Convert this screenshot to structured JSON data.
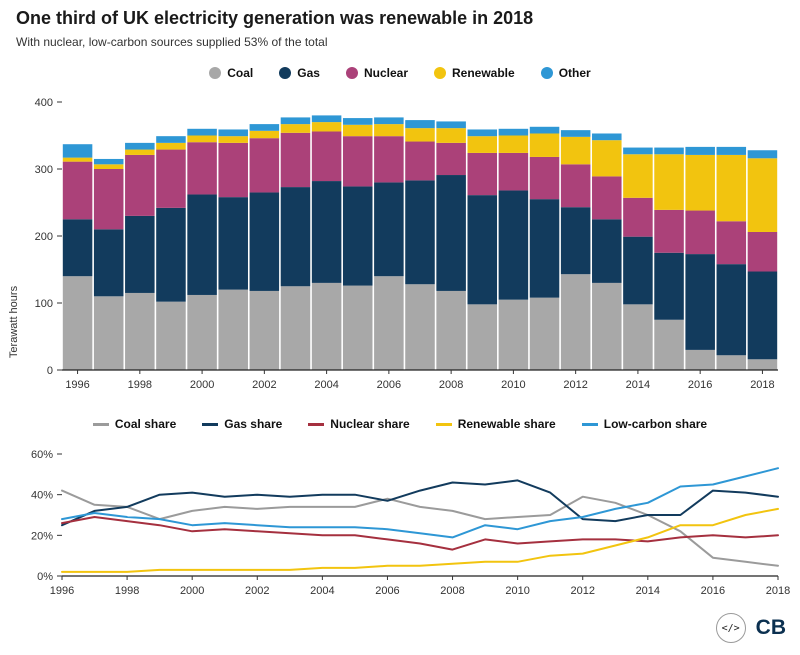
{
  "header": {
    "title": "One third of UK electricity generation was renewable in 2018",
    "subtitle": "With nuclear, low-carbon sources supplied 53% of the total"
  },
  "chart_data": [
    {
      "type": "bar",
      "stacked": true,
      "ylabel": "Terawatt hours",
      "ylim": [
        0,
        400
      ],
      "yticks": [
        0,
        100,
        200,
        300,
        400
      ],
      "x": [
        1996,
        1997,
        1998,
        1999,
        2000,
        2001,
        2002,
        2003,
        2004,
        2005,
        2006,
        2007,
        2008,
        2009,
        2010,
        2011,
        2012,
        2013,
        2014,
        2015,
        2016,
        2017,
        2018
      ],
      "xticks": [
        1996,
        1998,
        2000,
        2002,
        2004,
        2006,
        2008,
        2010,
        2012,
        2014,
        2016,
        2018
      ],
      "series": [
        {
          "name": "Coal",
          "color": "#a8a8a8",
          "values": [
            140,
            110,
            115,
            102,
            112,
            120,
            118,
            125,
            130,
            126,
            140,
            128,
            118,
            98,
            105,
            108,
            143,
            130,
            98,
            75,
            30,
            22,
            16
          ]
        },
        {
          "name": "Gas",
          "color": "#123b5d",
          "values": [
            85,
            100,
            115,
            140,
            150,
            138,
            147,
            148,
            152,
            148,
            140,
            155,
            173,
            163,
            163,
            147,
            100,
            95,
            101,
            100,
            143,
            136,
            131
          ]
        },
        {
          "name": "Nuclear",
          "color": "#ab4179",
          "values": [
            86,
            90,
            91,
            87,
            78,
            81,
            81,
            81,
            74,
            75,
            69,
            58,
            48,
            63,
            56,
            63,
            64,
            64,
            58,
            64,
            65,
            64,
            59
          ]
        },
        {
          "name": "Renewable",
          "color": "#f2c40f",
          "values": [
            6,
            7,
            8,
            10,
            10,
            10,
            11,
            13,
            14,
            17,
            18,
            20,
            22,
            25,
            26,
            35,
            41,
            54,
            65,
            83,
            83,
            99,
            110
          ]
        },
        {
          "name": "Other",
          "color": "#2e97d5",
          "values": [
            20,
            8,
            10,
            10,
            10,
            10,
            10,
            10,
            10,
            10,
            10,
            12,
            10,
            10,
            10,
            10,
            10,
            10,
            10,
            10,
            12,
            12,
            12
          ]
        }
      ]
    },
    {
      "type": "line",
      "ylim": [
        0,
        60
      ],
      "yticks": [
        0,
        20,
        40,
        60
      ],
      "ytick_suffix": "%",
      "x": [
        1996,
        1997,
        1998,
        1999,
        2000,
        2001,
        2002,
        2003,
        2004,
        2005,
        2006,
        2007,
        2008,
        2009,
        2010,
        2011,
        2012,
        2013,
        2014,
        2015,
        2016,
        2017,
        2018
      ],
      "xticks": [
        1996,
        1998,
        2000,
        2002,
        2004,
        2006,
        2008,
        2010,
        2012,
        2014,
        2016,
        2018
      ],
      "series": [
        {
          "name": "Coal share",
          "color": "#9b9b9b",
          "values": [
            42,
            35,
            34,
            28,
            32,
            34,
            33,
            34,
            34,
            34,
            38,
            34,
            32,
            28,
            29,
            30,
            39,
            36,
            30,
            22,
            9,
            7,
            5
          ]
        },
        {
          "name": "Gas share",
          "color": "#123b5d",
          "values": [
            25,
            32,
            34,
            40,
            41,
            39,
            40,
            39,
            40,
            40,
            37,
            42,
            46,
            45,
            47,
            41,
            28,
            27,
            30,
            30,
            42,
            41,
            39
          ]
        },
        {
          "name": "Nuclear share",
          "color": "#a5303f",
          "values": [
            26,
            29,
            27,
            25,
            22,
            23,
            22,
            21,
            20,
            20,
            18,
            16,
            13,
            18,
            16,
            17,
            18,
            18,
            17,
            19,
            20,
            19,
            20
          ]
        },
        {
          "name": "Renewable share",
          "color": "#f2c40f",
          "values": [
            2,
            2,
            2,
            3,
            3,
            3,
            3,
            3,
            4,
            4,
            5,
            5,
            6,
            7,
            7,
            10,
            11,
            15,
            19,
            25,
            25,
            30,
            33
          ]
        },
        {
          "name": "Low-carbon share",
          "color": "#2e97d5",
          "values": [
            28,
            31,
            29,
            28,
            25,
            26,
            25,
            24,
            24,
            24,
            23,
            21,
            19,
            25,
            23,
            27,
            29,
            33,
            36,
            44,
            45,
            49,
            53
          ]
        }
      ]
    }
  ],
  "footer": {
    "embed_label": "</>",
    "logo": "CB"
  }
}
